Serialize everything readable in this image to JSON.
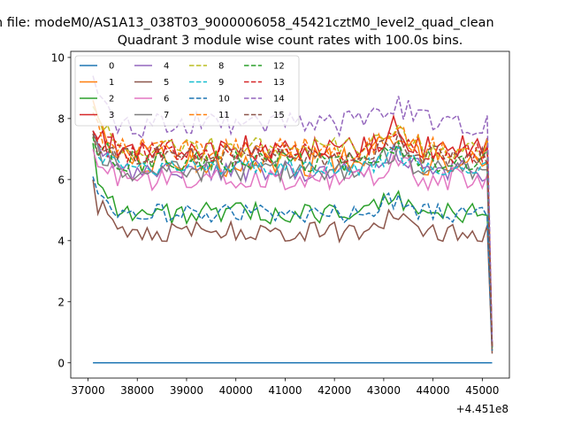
{
  "figure": {
    "suptitle": "n file: modeM0/AS1A13_038T03_9000006058_45421cztM0_level2_quad_clean",
    "title": "Quadrant 3 module wise count rates with 100.0s bins.",
    "x_offset_label": "+4.451e8"
  },
  "chart_data": {
    "type": "line",
    "title": "Quadrant 3 module wise count rates with 100.0s bins.",
    "xlabel": "",
    "ylabel": "",
    "xlim": [
      36650,
      45550
    ],
    "ylim": [
      -0.5,
      10.2
    ],
    "x_offset": 445100000,
    "x_start": 37100,
    "x_step": 100,
    "xticks": [
      37000,
      38000,
      39000,
      40000,
      41000,
      42000,
      43000,
      44000,
      45000
    ],
    "yticks": [
      0,
      2,
      4,
      6,
      8,
      10
    ],
    "grid": false,
    "legend": {
      "position": "top-left",
      "ncol": 4
    },
    "series": [
      {
        "name": "0",
        "color": "#1f77b4",
        "dash": "solid",
        "level": 0,
        "amp": 0,
        "start": 0,
        "end": 0
      },
      {
        "name": "1",
        "color": "#ff7f0e",
        "dash": "solid",
        "level": 6.6,
        "amp": 0.5,
        "start": 8.6,
        "end": 0.5
      },
      {
        "name": "2",
        "color": "#2ca02c",
        "dash": "solid",
        "level": 4.9,
        "amp": 0.35,
        "start": 7.2,
        "end": 0.4
      },
      {
        "name": "3",
        "color": "#d62728",
        "dash": "solid",
        "level": 7.0,
        "amp": 0.45,
        "start": 7.6,
        "end": 0.5
      },
      {
        "name": "4",
        "color": "#9467bd",
        "dash": "solid",
        "level": 6.3,
        "amp": 0.35,
        "start": 7.6,
        "end": 0.5
      },
      {
        "name": "5",
        "color": "#8c564b",
        "dash": "solid",
        "level": 4.3,
        "amp": 0.35,
        "start": 6.0,
        "end": 0.3
      },
      {
        "name": "6",
        "color": "#e377c2",
        "dash": "solid",
        "level": 6.0,
        "amp": 0.4,
        "start": 7.0,
        "end": 0.5
      },
      {
        "name": "7",
        "color": "#7f7f7f",
        "dash": "solid",
        "level": 6.3,
        "amp": 0.35,
        "start": 7.6,
        "end": 0.5
      },
      {
        "name": "8",
        "color": "#bcbd22",
        "dash": "dashed",
        "level": 7.0,
        "amp": 0.4,
        "start": 8.4,
        "end": 0.5
      },
      {
        "name": "9",
        "color": "#17becf",
        "dash": "dashed",
        "level": 6.4,
        "amp": 0.3,
        "start": 7.4,
        "end": 0.5
      },
      {
        "name": "10",
        "color": "#1f77b4",
        "dash": "dashed",
        "level": 4.9,
        "amp": 0.3,
        "start": 6.1,
        "end": 0.4
      },
      {
        "name": "11",
        "color": "#ff7f0e",
        "dash": "dashed",
        "level": 7.0,
        "amp": 0.4,
        "start": 8.2,
        "end": 0.5
      },
      {
        "name": "12",
        "color": "#2ca02c",
        "dash": "dashed",
        "level": 6.6,
        "amp": 0.35,
        "start": 7.4,
        "end": 0.5
      },
      {
        "name": "13",
        "color": "#d62728",
        "dash": "dashed",
        "level": 6.9,
        "amp": 0.35,
        "start": 7.6,
        "end": 0.5
      },
      {
        "name": "14",
        "color": "#9467bd",
        "dash": "dashed",
        "level": 7.8,
        "amp": 0.45,
        "start": 9.4,
        "end": 0.6
      },
      {
        "name": "15",
        "color": "#8c564b",
        "dash": "dashed",
        "level": 6.8,
        "amp": 0.35,
        "start": 7.5,
        "end": 0.5
      }
    ]
  }
}
